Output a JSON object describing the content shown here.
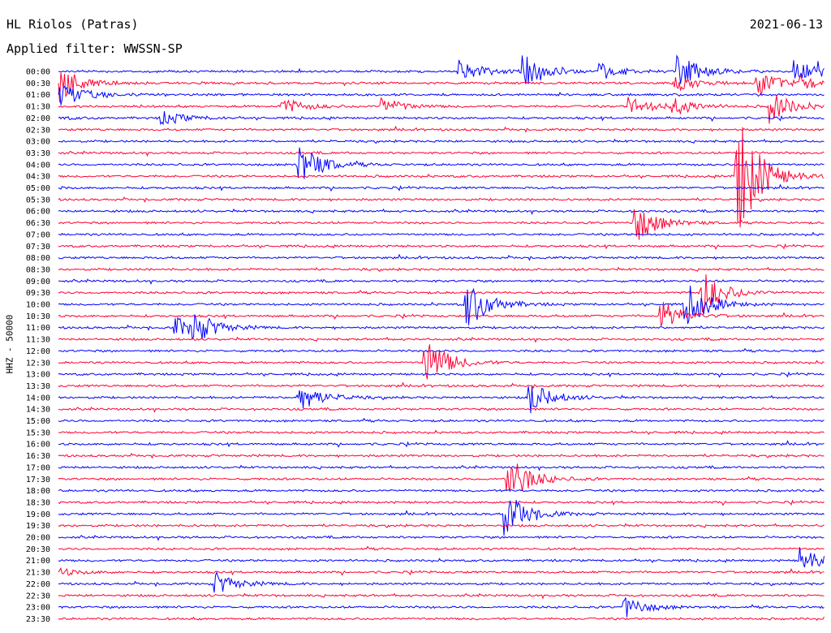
{
  "header": {
    "station": "HL Riolos (Patras)",
    "date": "2021-06-13",
    "filter": "Applied filter: WWSSN-SP"
  },
  "chart_data": {
    "type": "line",
    "title": "HL Riolos (Patras)",
    "ylabel": "HHZ - 50000",
    "colors": [
      "#0000ff",
      "#ff0033"
    ],
    "minutes_per_line": 30,
    "categories": [
      "00:00",
      "00:30",
      "01:00",
      "01:30",
      "02:00",
      "02:30",
      "03:00",
      "03:30",
      "04:00",
      "04:30",
      "05:00",
      "05:30",
      "06:00",
      "06:30",
      "07:00",
      "07:30",
      "08:00",
      "08:30",
      "09:00",
      "09:30",
      "10:00",
      "10:30",
      "11:00",
      "11:30",
      "12:00",
      "12:30",
      "13:00",
      "13:30",
      "14:00",
      "14:30",
      "15:00",
      "15:30",
      "16:00",
      "16:30",
      "17:00",
      "17:30",
      "18:00",
      "18:30",
      "19:00",
      "19:30",
      "20:00",
      "20:30",
      "21:00",
      "21:30",
      "22:00",
      "22:30",
      "23:00",
      "23:30"
    ],
    "events": [
      {
        "time": "00:15.6",
        "amp": 1.2
      },
      {
        "time": "00:18.1",
        "amp": 1.6
      },
      {
        "time": "00:21.1",
        "amp": 0.8
      },
      {
        "time": "00:24.2",
        "amp": 1.6
      },
      {
        "time": "00:28.7",
        "amp": 1.1
      },
      {
        "time": "00:29.7",
        "amp": 0.8
      },
      {
        "time": "00:30.0",
        "amp": 1.0
      },
      {
        "time": "00:54.0",
        "amp": 0.8
      },
      {
        "time": "00:57.3",
        "amp": 1.2
      },
      {
        "time": "00:59.0",
        "amp": 0.7
      },
      {
        "time": "01:00.0",
        "amp": 1.0
      },
      {
        "time": "01:38.7",
        "amp": 0.8
      },
      {
        "time": "01:42.6",
        "amp": 0.8
      },
      {
        "time": "01:52.3",
        "amp": 1.0
      },
      {
        "time": "01:54.0",
        "amp": 0.8
      },
      {
        "time": "01:57.8",
        "amp": 1.5
      },
      {
        "time": "02:04.0",
        "amp": 0.7
      },
      {
        "time": "04:09.3",
        "amp": 2.2
      },
      {
        "time": "04:56.5",
        "amp": 6.5
      },
      {
        "time": "06:52.5",
        "amp": 2.0
      },
      {
        "time": "09:55.1",
        "amp": 2.2
      },
      {
        "time": "10:15.9",
        "amp": 2.5
      },
      {
        "time": "10:24.5",
        "amp": 2.2
      },
      {
        "time": "10:53.5",
        "amp": 1.5
      },
      {
        "time": "11:04.5",
        "amp": 1.0
      },
      {
        "time": "11:05.2",
        "amp": 1.3
      },
      {
        "time": "12:44.3",
        "amp": 2.5
      },
      {
        "time": "14:09.3",
        "amp": 1.5
      },
      {
        "time": "14:18.4",
        "amp": 1.5
      },
      {
        "time": "17:47.5",
        "amp": 2.5
      },
      {
        "time": "19:17.4",
        "amp": 2.2
      },
      {
        "time": "21:29.0",
        "amp": 1.2
      },
      {
        "time": "22:06.1",
        "amp": 1.0
      },
      {
        "time": "23:22.1",
        "amp": 1.0
      }
    ]
  }
}
